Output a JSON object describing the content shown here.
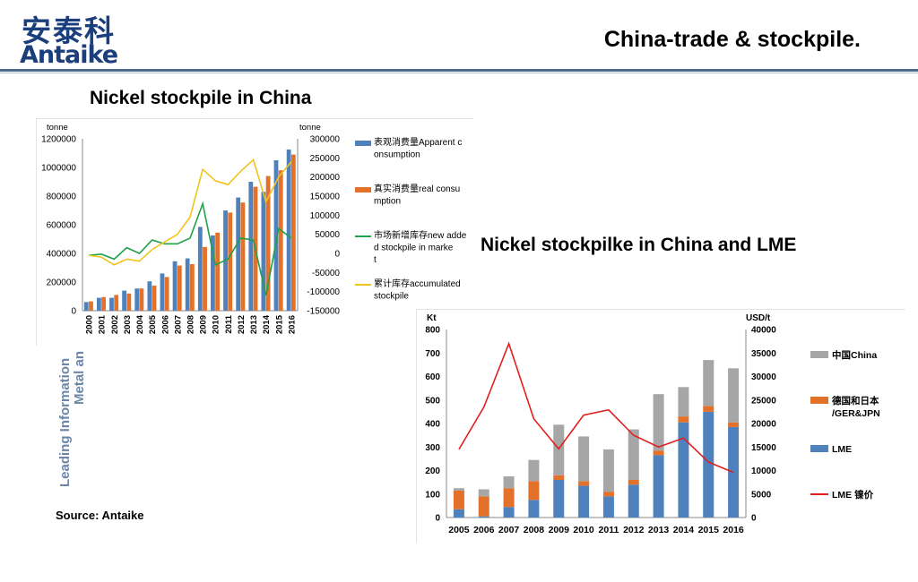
{
  "header": {
    "logo_cn": "安泰科",
    "logo_en": "Antaike",
    "title": "China-trade & stockpile."
  },
  "sections": {
    "left_title": "Nickel stockpile in China",
    "right_title": "Nickel stockpilke in China and LME"
  },
  "sidebar": {
    "line1": "Leading Information",
    "line2": "Metal an"
  },
  "footer": {
    "source": "Source: Antaike"
  },
  "colors": {
    "blue": "#4f81bd",
    "orange": "#e3712a",
    "gray": "#a6a6a6",
    "green": "#1fa24a",
    "yellow": "#f1c31d",
    "red": "#e0201f"
  },
  "chart_data": [
    {
      "type": "bar",
      "y_left_unit": "tonne",
      "y_right_unit": "tonne",
      "categories": [
        "2000",
        "2001",
        "2002",
        "2003",
        "2004",
        "2005",
        "2006",
        "2007",
        "2008",
        "2009",
        "2010",
        "2011",
        "2012",
        "2013",
        "2014",
        "2015",
        "2016"
      ],
      "ylim_left": [
        0,
        1200000
      ],
      "ylim_right": [
        -150000,
        300000
      ],
      "yticks_left": [
        "0",
        "200000",
        "400000",
        "600000",
        "800000",
        "1000000",
        "1200000"
      ],
      "yticks_right": [
        "-150000",
        "-100000",
        "-50000",
        "0",
        "50000",
        "100000",
        "150000",
        "200000",
        "250000",
        "300000"
      ],
      "series": [
        {
          "name": "表观消费量Apparent consumption",
          "kind": "bar",
          "axis": "left",
          "color": "#4f81bd",
          "values": [
            60000,
            90000,
            90000,
            140000,
            155000,
            205000,
            260000,
            345000,
            365000,
            585000,
            525000,
            700000,
            790000,
            900000,
            830000,
            1050000,
            1125000
          ]
        },
        {
          "name": "真实消费量real consumption",
          "kind": "bar",
          "axis": "left",
          "color": "#e3712a",
          "values": [
            65000,
            95000,
            110000,
            120000,
            155000,
            175000,
            235000,
            315000,
            325000,
            445000,
            545000,
            685000,
            755000,
            865000,
            940000,
            980000,
            1090000
          ]
        },
        {
          "name": "市场新增库存new added stockpile in market",
          "kind": "line",
          "axis": "right",
          "color": "#1fa24a",
          "values": [
            -5000,
            -2000,
            -15000,
            15000,
            0,
            35000,
            25000,
            25000,
            40000,
            130000,
            -30000,
            -15000,
            40000,
            35000,
            -110000,
            65000,
            40000
          ]
        },
        {
          "name": "累计库存accumulated stockpile",
          "kind": "line",
          "axis": "right",
          "color": "#f1c31d",
          "values": [
            -5000,
            -10000,
            -30000,
            -15000,
            -20000,
            10000,
            30000,
            50000,
            95000,
            220000,
            190000,
            180000,
            215000,
            245000,
            135000,
            200000,
            240000
          ]
        }
      ]
    },
    {
      "type": "bar",
      "y_left_unit": "Kt",
      "y_right_unit": "USD/t",
      "categories": [
        "2005",
        "2006",
        "2007",
        "2008",
        "2009",
        "2010",
        "2011",
        "2012",
        "2013",
        "2014",
        "2015",
        "2016"
      ],
      "ylim_left": [
        0,
        800
      ],
      "ylim_right": [
        0,
        40000
      ],
      "yticks_left": [
        "0",
        "100",
        "200",
        "300",
        "400",
        "500",
        "600",
        "700",
        "800"
      ],
      "yticks_right": [
        "0",
        "5000",
        "10000",
        "15000",
        "20000",
        "25000",
        "30000",
        "35000",
        "40000"
      ],
      "stacked": true,
      "series": [
        {
          "name": "LME",
          "kind": "bar",
          "axis": "left",
          "color": "#4f81bd",
          "values": [
            35,
            5,
            45,
            75,
            160,
            135,
            90,
            140,
            265,
            405,
            450,
            385
          ]
        },
        {
          "name": "德国和日本/GER&JPN",
          "kind": "bar",
          "axis": "left",
          "color": "#e3712a",
          "values": [
            80,
            85,
            80,
            80,
            20,
            20,
            20,
            20,
            20,
            25,
            25,
            20
          ]
        },
        {
          "name": "中国China",
          "kind": "bar",
          "axis": "left",
          "color": "#a6a6a6",
          "values": [
            10,
            30,
            50,
            90,
            215,
            190,
            180,
            215,
            240,
            125,
            195,
            230
          ]
        },
        {
          "name": "LME 镍价",
          "kind": "line",
          "axis": "right",
          "color": "#e0201f",
          "values": [
            14500,
            23500,
            37000,
            21000,
            14600,
            21800,
            22900,
            17500,
            15000,
            16900,
            11800,
            9600
          ]
        }
      ]
    }
  ]
}
